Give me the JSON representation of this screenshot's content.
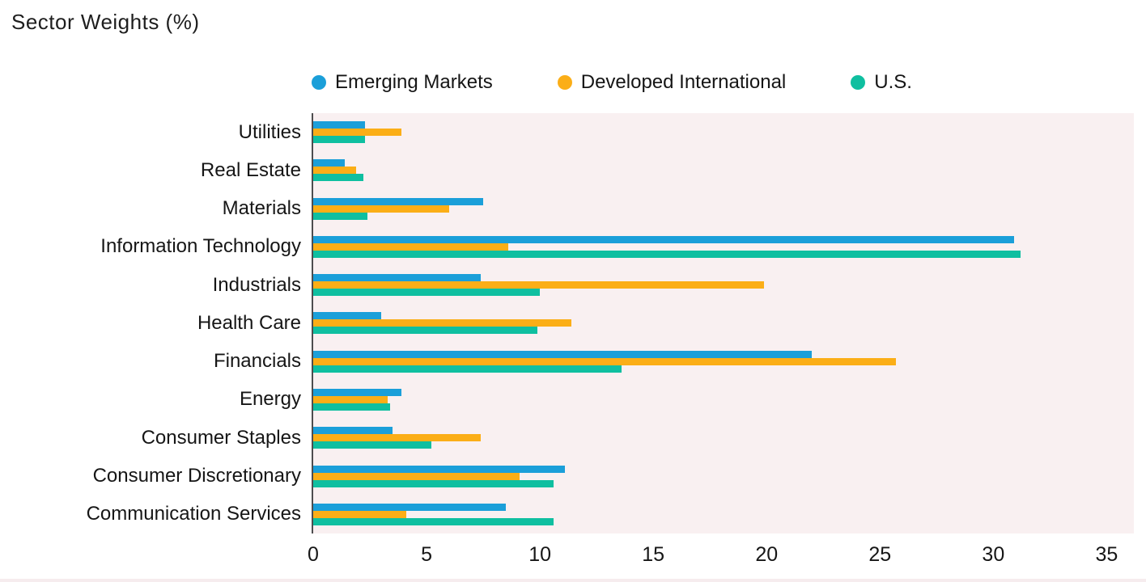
{
  "title": "Sector Weights (%)",
  "chart_data": {
    "type": "bar",
    "orientation": "horizontal",
    "title": "Sector Weights (%)",
    "categories": [
      "Utilities",
      "Real Estate",
      "Materials",
      "Information Technology",
      "Industrials",
      "Health Care",
      "Financials",
      "Energy",
      "Consumer Staples",
      "Consumer Discretionary",
      "Communication Services"
    ],
    "series": [
      {
        "name": "Emerging Markets",
        "color": "#1B9FD9",
        "values": [
          2.3,
          1.4,
          7.5,
          30.9,
          7.4,
          3.0,
          22.0,
          3.9,
          3.5,
          11.1,
          8.5
        ]
      },
      {
        "name": "Developed International",
        "color": "#FBAE17",
        "values": [
          3.9,
          1.9,
          6.0,
          8.6,
          19.9,
          11.4,
          25.7,
          3.3,
          7.4,
          9.1,
          4.1
        ]
      },
      {
        "name": "U.S.",
        "color": "#0FBFA0",
        "values": [
          2.3,
          2.2,
          2.4,
          31.2,
          10.0,
          9.9,
          13.6,
          3.4,
          5.2,
          10.6,
          10.6
        ]
      }
    ],
    "x_ticks": [
      0,
      5,
      10,
      15,
      20,
      25,
      30,
      35
    ],
    "xlim": [
      0,
      35
    ],
    "xlabel": "",
    "ylabel": "",
    "legend_position": "top",
    "grid": false,
    "plot_background": "#F9F0F1",
    "axis_color": "#4D4D4F",
    "text_color": "#1E1E1E"
  }
}
